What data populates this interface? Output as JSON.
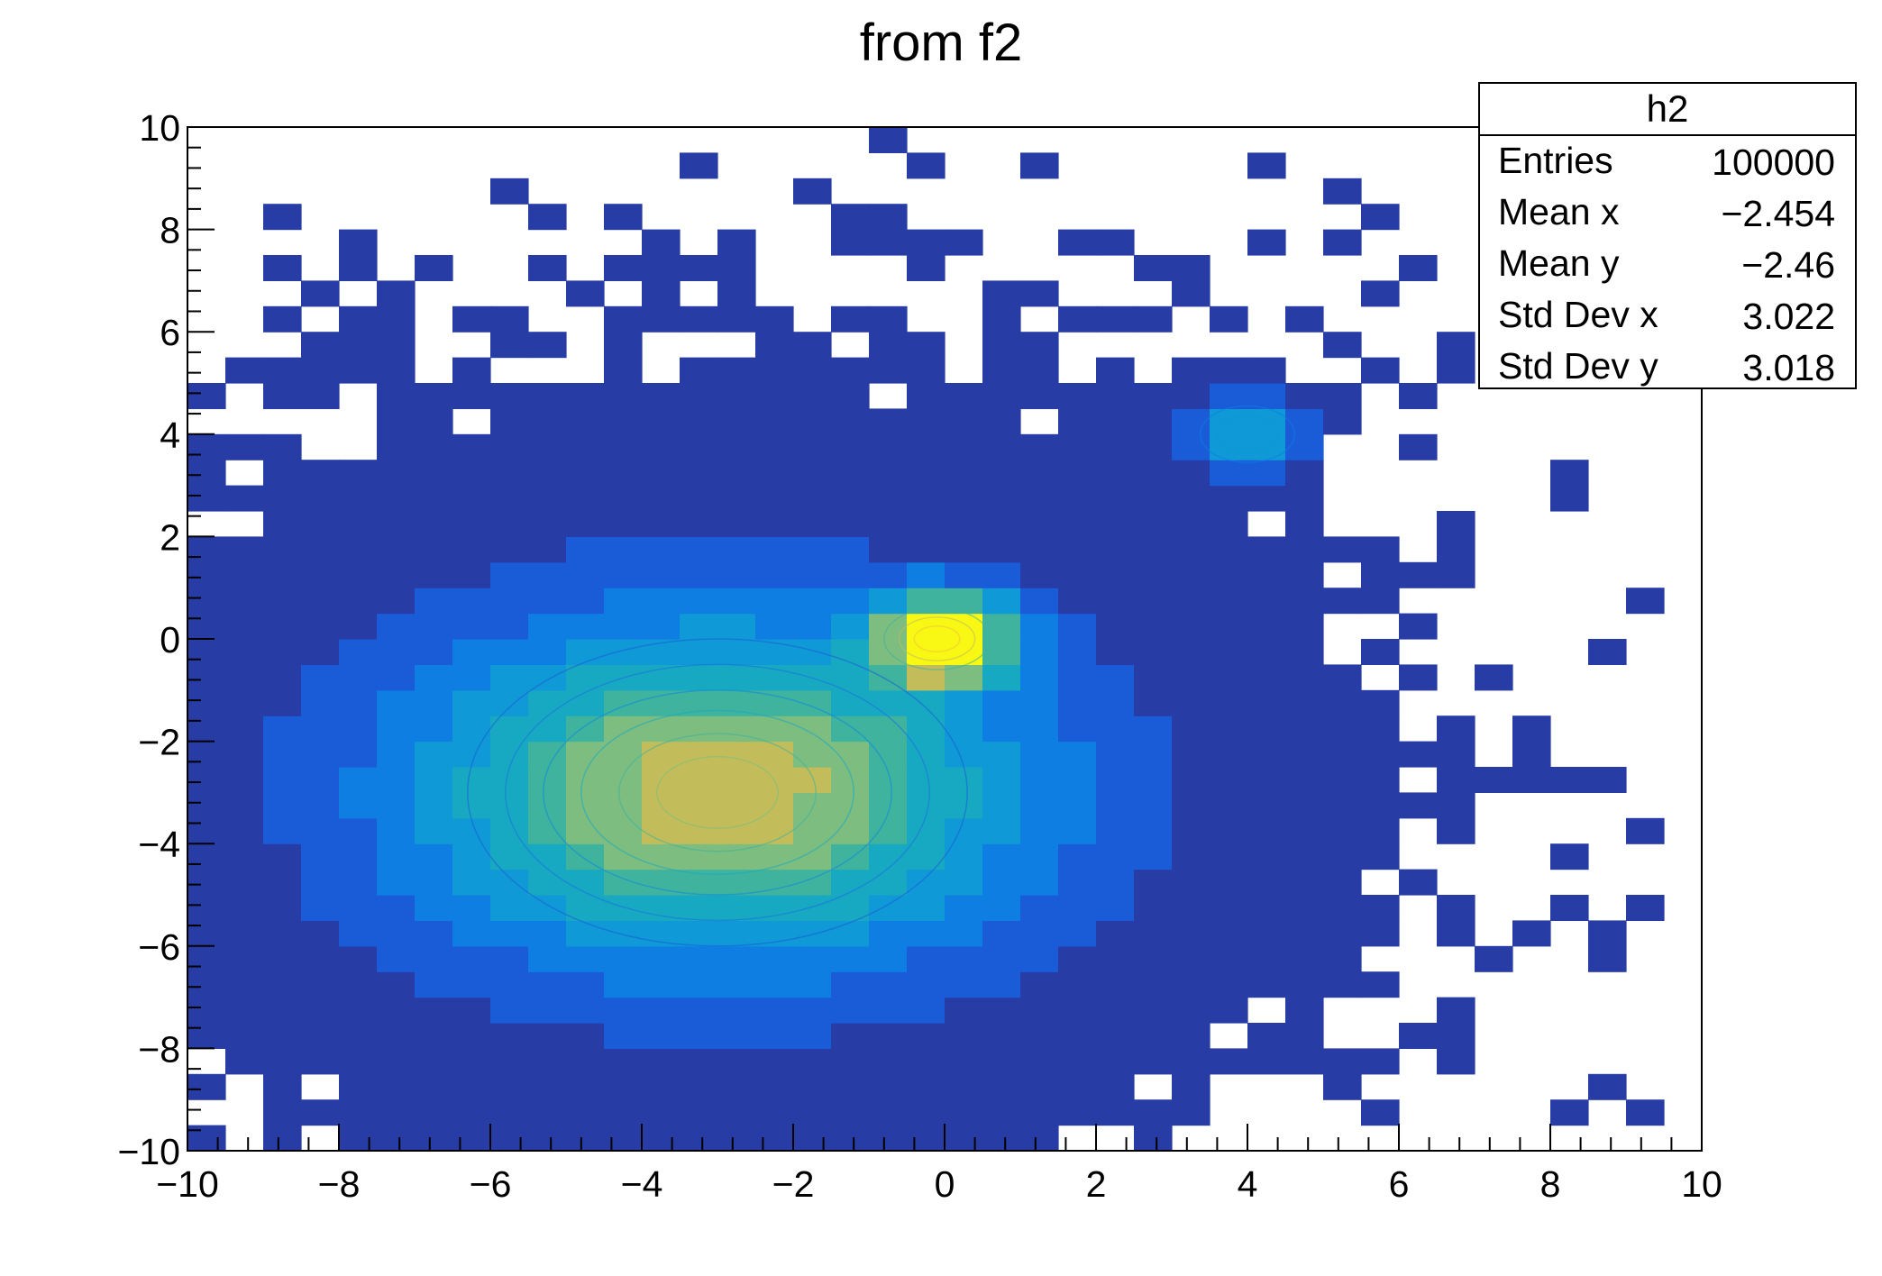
{
  "chart_data": {
    "type": "heatmap",
    "title": "from f2",
    "xlim": [
      -10,
      10
    ],
    "ylim": [
      -10,
      10
    ],
    "bins": [
      40,
      40
    ],
    "x_ticks": [
      "−10",
      "−8",
      "−6",
      "−4",
      "−2",
      "0",
      "2",
      "4",
      "6",
      "8",
      "10"
    ],
    "y_ticks": [
      "−10",
      "−8",
      "−6",
      "−4",
      "−2",
      "0",
      "2",
      "4",
      "6",
      "8",
      "10"
    ],
    "palette": [
      "#283ca6",
      "#1a5cd8",
      "#0f7ee2",
      "#0f99d6",
      "#18a9c2",
      "#3fb39d",
      "#7dbd80",
      "#c2bd5a",
      "#f3c535",
      "#f8f814"
    ],
    "components": [
      {
        "peak": "sharp",
        "x": 0,
        "y": 0,
        "sigma": 0.55
      },
      {
        "peak": "broad",
        "x": -3,
        "y": -3,
        "sigma_x": 2.6,
        "sigma_y": 2.1
      },
      {
        "peak": "small",
        "x": 4,
        "y": 4,
        "sigma": 0.45
      }
    ],
    "stats_box": {
      "name": "h2",
      "rows": [
        {
          "label": "Entries",
          "value": "100000"
        },
        {
          "label": "Mean x",
          "value": "−2.454"
        },
        {
          "label": "Mean y",
          "value": "−2.46"
        },
        {
          "label": "Std Dev x",
          "value": "3.022"
        },
        {
          "label": "Std Dev y",
          "value": "3.018"
        }
      ]
    }
  }
}
